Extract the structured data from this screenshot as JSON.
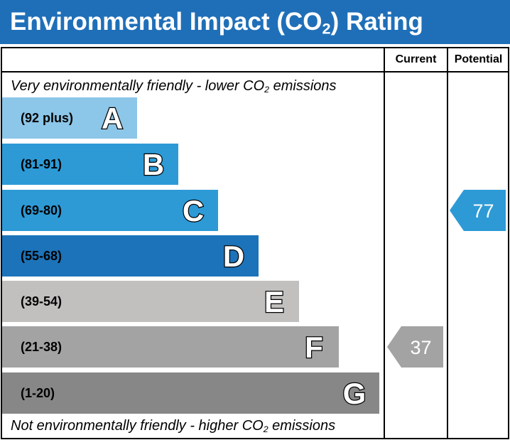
{
  "title": {
    "main": "Environmental Impact (CO",
    "sub": "2",
    "tail": ") Rating"
  },
  "columns": {
    "current": "Current",
    "potential": "Potential"
  },
  "top_note": {
    "pre": "Very environmentally friendly - lower CO",
    "sub": "2",
    "post": " emissions"
  },
  "bottom_note": {
    "pre": "Not environmentally friendly - higher CO",
    "sub": "2",
    "post": " emissions"
  },
  "chart_data": {
    "type": "bar",
    "categories": [
      "A",
      "B",
      "C",
      "D",
      "E",
      "F",
      "G"
    ],
    "ranges": [
      "(92 plus)",
      "(81-91)",
      "(69-80)",
      "(55-68)",
      "(39-54)",
      "(21-38)",
      "(1-20)"
    ],
    "colors": [
      "#8cc6e8",
      "#2d9ad6",
      "#2d9ad6",
      "#1c73b9",
      "#c1c0be",
      "#a3a3a3",
      "#878787"
    ],
    "current": {
      "value": 37,
      "band": "F",
      "color": "#a3a3a3"
    },
    "potential": {
      "value": 77,
      "band": "C",
      "color": "#2d9ad6"
    }
  }
}
